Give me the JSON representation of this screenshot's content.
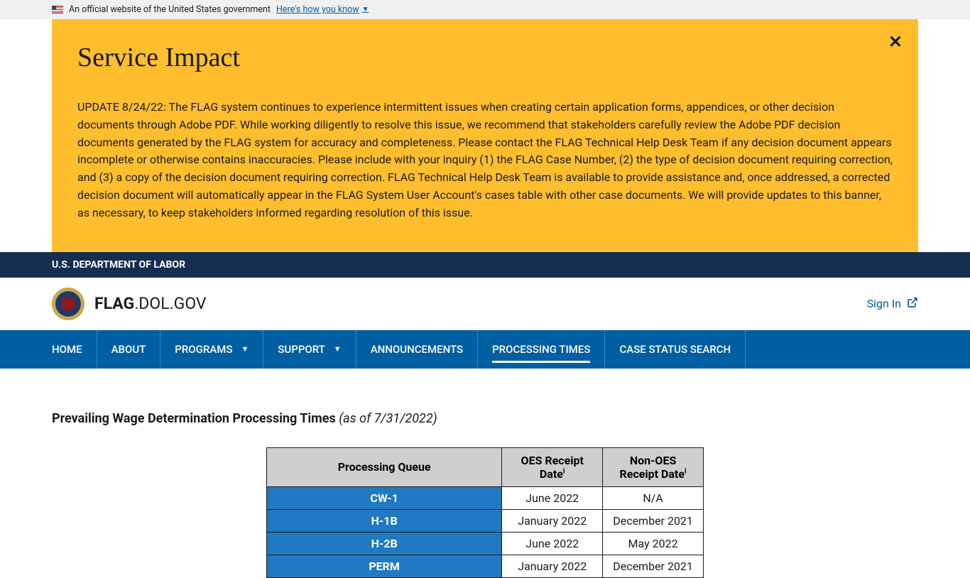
{
  "gov_banner": {
    "text": "An official website of the United States government",
    "link_text": "Here's how you know"
  },
  "alert": {
    "title": "Service Impact",
    "body": "UPDATE 8/24/22: The FLAG system continues to experience intermittent issues when creating certain application forms, appendices, or other decision documents through Adobe PDF. While working diligently to resolve this issue, we recommend that stakeholders carefully review the Adobe PDF decision documents generated by the FLAG system for accuracy and completeness. Please contact the FLAG Technical Help Desk Team if any decision document appears incomplete or otherwise contains inaccuracies. Please include with your inquiry (1) the FLAG Case Number, (2) the type of decision document requiring correction, and (3) a copy of the decision document requiring correction. FLAG Technical Help Desk Team is available to provide assistance and, once addressed, a corrected decision document will automatically appear in the FLAG System User Account's cases table with other case documents. We will provide updates to this banner, as necessary, to keep stakeholders informed regarding resolution of this issue."
  },
  "dept": "U.S. DEPARTMENT OF LABOR",
  "site": {
    "bold": "FLAG",
    "rest": ".DOL.GOV"
  },
  "signin": "Sign In",
  "nav": [
    {
      "label": "HOME",
      "dropdown": false
    },
    {
      "label": "ABOUT",
      "dropdown": false
    },
    {
      "label": "PROGRAMS",
      "dropdown": true
    },
    {
      "label": "SUPPORT",
      "dropdown": true
    },
    {
      "label": "ANNOUNCEMENTS",
      "dropdown": false
    },
    {
      "label": "PROCESSING TIMES",
      "dropdown": false,
      "active": true
    },
    {
      "label": "CASE STATUS SEARCH",
      "dropdown": false
    }
  ],
  "heading": {
    "bold": "Prevailing Wage Determination Processing Times",
    "italic": "(as of 7/31/2022)"
  },
  "table": {
    "columns": [
      "Processing Queue",
      "OES Receipt Date",
      "Non-OES Receipt Date"
    ],
    "sup": "i",
    "rows": [
      {
        "cat": "CW-1",
        "oes": "June 2022",
        "non": "N/A"
      },
      {
        "cat": "H-1B",
        "oes": "January 2022",
        "non": "December 2021"
      },
      {
        "cat": "H-2B",
        "oes": "June 2022",
        "non": "May 2022"
      },
      {
        "cat": "PERM",
        "oes": "January 2022",
        "non": "December 2021"
      }
    ],
    "colors": {
      "header_bg": "#d0cece",
      "cat_bg": "#2079c2",
      "cat_fg": "#ffffff",
      "border": "#1b1b1b"
    }
  },
  "colors": {
    "alert_bg": "#ffbe2e",
    "dept_bg": "#162e51",
    "nav_bg": "#005ea2",
    "link": "#005ea2"
  }
}
